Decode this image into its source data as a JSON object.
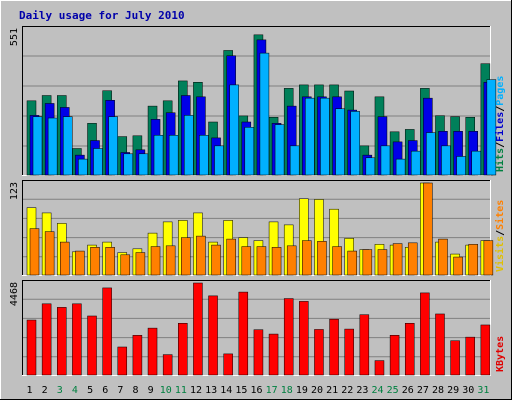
{
  "chart_data": {
    "type": "bar",
    "title": "Daily usage for July 2010",
    "days": [
      "1",
      "2",
      "3",
      "4",
      "5",
      "6",
      "7",
      "8",
      "9",
      "10",
      "11",
      "12",
      "13",
      "14",
      "15",
      "16",
      "17",
      "18",
      "19",
      "20",
      "21",
      "22",
      "23",
      "24",
      "25",
      "26",
      "27",
      "28",
      "29",
      "30",
      "31"
    ],
    "weekend_days": [
      "3",
      "4",
      "10",
      "11",
      "17",
      "18",
      "24",
      "25",
      "31"
    ],
    "panels": [
      {
        "id": "hits",
        "scale_max": 551,
        "scale_label": "551",
        "side_label": [
          {
            "text": "Hits",
            "color": "#008040"
          },
          {
            "text": "/",
            "color": "#000000"
          },
          {
            "text": "Files",
            "color": "#0000cc"
          },
          {
            "text": "/",
            "color": "#000000"
          },
          {
            "text": "Pages",
            "color": "#00b0ff"
          }
        ],
        "series": [
          {
            "name": "Hits",
            "color": "#00805a",
            "values": [
              280,
              300,
              300,
              100,
              195,
              318,
              145,
              148,
              260,
              280,
              355,
              350,
              200,
              470,
              223,
              529,
              218,
              327,
              340,
              340,
              340,
              317,
              110,
              295,
              163,
              172,
              327,
              224,
              220,
              218,
              420
            ]
          },
          {
            "name": "Files",
            "color": "#0000e8",
            "values": [
              225,
              270,
              255,
              75,
              130,
              282,
              85,
              95,
              210,
              235,
              300,
              295,
              140,
              450,
              200,
              510,
              195,
              260,
              295,
              295,
              295,
              245,
              75,
              220,
              125,
              130,
              290,
              165,
              165,
              165,
              350
            ]
          },
          {
            "name": "Pages",
            "color": "#00b0ff",
            "values": [
              220,
              215,
              220,
              60,
              100,
              220,
              80,
              80,
              150,
              150,
              225,
              150,
              110,
              340,
              180,
              460,
              190,
              110,
              290,
              290,
              250,
              240,
              65,
              110,
              60,
              90,
              160,
              110,
              70,
              90,
              360
            ]
          }
        ]
      },
      {
        "id": "visits",
        "scale_max": 123,
        "scale_label": "123",
        "side_label": [
          {
            "text": "Visits",
            "color": "#e0c000"
          },
          {
            "text": "/",
            "color": "#000000"
          },
          {
            "text": "Sites",
            "color": "#ff8000"
          }
        ],
        "series": [
          {
            "name": "Visits",
            "color": "#ffff00",
            "values": [
              90,
              83,
              69,
              31,
              40,
              44,
              30,
              35,
              56,
              71,
              73,
              83,
              44,
              73,
              50,
              46,
              71,
              67,
              102,
              101,
              88,
              49,
              34,
              41,
              40,
              37,
              123,
              44,
              28,
              40,
              46
            ]
          },
          {
            "name": "Sites",
            "color": "#ff8000",
            "values": [
              62,
              58,
              44,
              32,
              37,
              37,
              27,
              30,
              38,
              39,
              50,
              52,
              40,
              48,
              38,
              38,
              37,
              39,
              46,
              45,
              38,
              32,
              34,
              34,
              42,
              43,
              123,
              48,
              24,
              41,
              46
            ]
          }
        ]
      },
      {
        "id": "kbytes",
        "scale_max": 4468,
        "scale_label": "4468",
        "side_label": [
          {
            "text": "KBytes",
            "color": "#e00000"
          }
        ],
        "series": [
          {
            "name": "KBytes",
            "color": "#ff0000",
            "values": [
              2670,
              3457,
              3285,
              3457,
              2866,
              4229,
              1360,
              1928,
              2277,
              990,
              2513,
              4468,
              3843,
              1025,
              4027,
              2200,
              1988,
              3713,
              3575,
              2212,
              2710,
              2230,
              2929,
              700,
              1930,
              2513,
              3987,
              2964,
              1665,
              1839,
              2430
            ]
          }
        ]
      }
    ]
  }
}
